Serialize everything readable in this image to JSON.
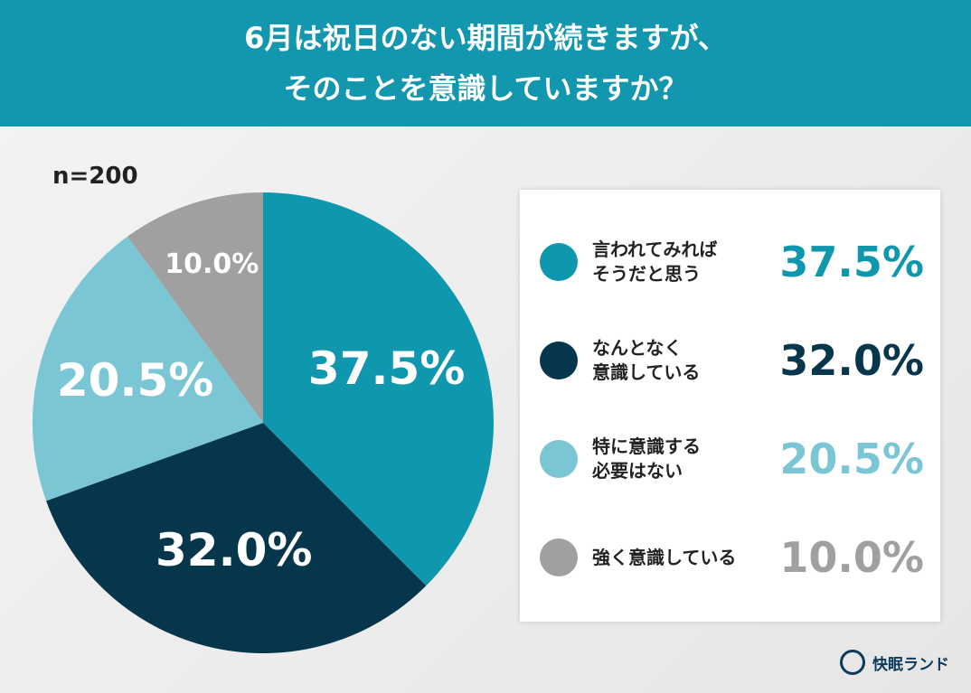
{
  "chart_data": {
    "type": "pie",
    "title": [
      "6月は祝日のない期間が続きますが、",
      "そのことを意識していますか？"
    ],
    "subtitle": "n=200",
    "categories": [
      "言われてみれば\nそうだと思う",
      "なんとなく\n意識している",
      "特に意識する\n必要はない",
      "強く意識している"
    ],
    "values": [
      37.5,
      32.0,
      20.5,
      10.0
    ],
    "value_labels": [
      "37.5%",
      "32.0%",
      "20.5%",
      "10.0%"
    ],
    "colors": [
      "#0f97ae",
      "#06364b",
      "#7ac6d4",
      "#a0a0a0"
    ],
    "brand": "快眠ランド"
  }
}
